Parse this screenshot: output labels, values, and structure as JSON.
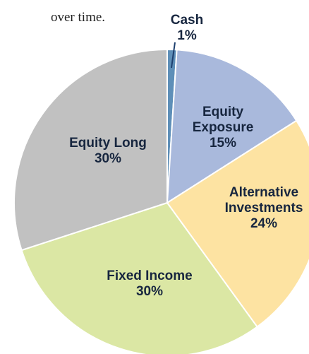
{
  "chart_data": {
    "type": "pie",
    "caption": "over time.",
    "categories": [
      "Cash",
      "Equity Exposure",
      "Alternative Investments",
      "Fixed Income",
      "Equity Long"
    ],
    "values": [
      1,
      15,
      24,
      30,
      30
    ],
    "value_labels": [
      "1%",
      "15%",
      "24%",
      "30%",
      "30%"
    ],
    "colors": [
      "#5e8fb8",
      "#a9b9dc",
      "#fde3a2",
      "#dbe7a4",
      "#c1c1c1"
    ]
  }
}
